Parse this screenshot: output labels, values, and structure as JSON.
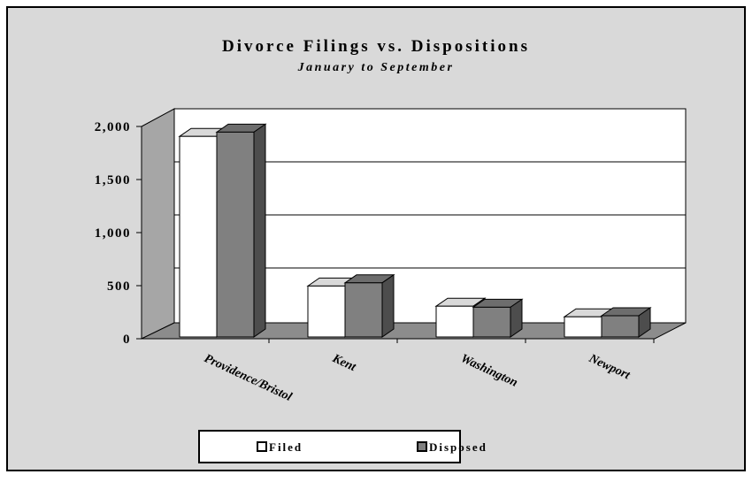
{
  "chart_data": {
    "type": "bar3d",
    "title": "Divorce Filings vs. Dispositions",
    "subtitle": "January to September",
    "categories": [
      "Providence/Bristol",
      "Kent",
      "Washington",
      "Newport"
    ],
    "series": [
      {
        "name": "Filed",
        "color": "#ffffff",
        "values": [
          1890,
          480,
          290,
          190
        ]
      },
      {
        "name": "Disposed",
        "color": "#808080",
        "values": [
          1930,
          510,
          280,
          200
        ]
      }
    ],
    "ylim": [
      0,
      2000
    ],
    "yticks": [
      0,
      500,
      {
        "value": 1000,
        "label": "1,000"
      },
      {
        "value": 1500,
        "label": "1,500"
      },
      {
        "value": 2000,
        "label": "2,000"
      }
    ],
    "grid": true,
    "legend": "bottom"
  }
}
